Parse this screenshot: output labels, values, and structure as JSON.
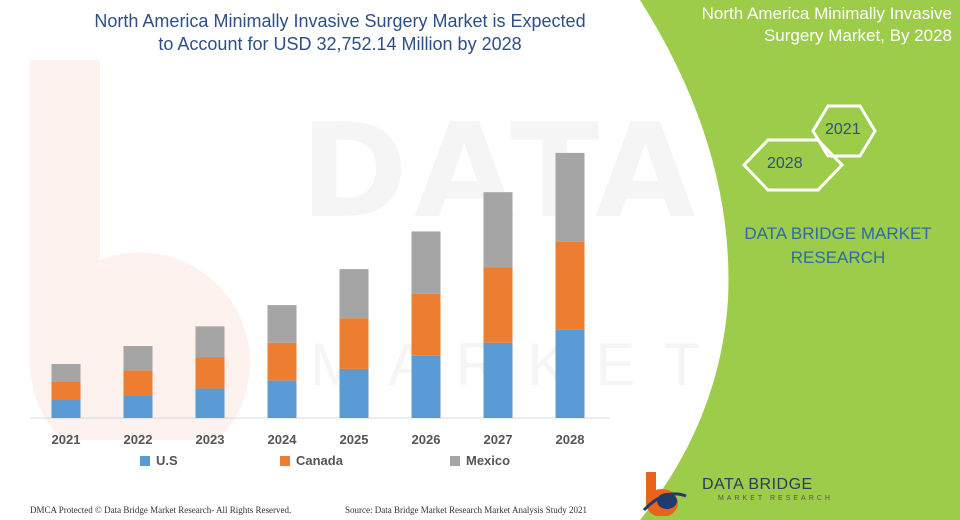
{
  "title": {
    "line1": "North America Minimally Invasive Surgery Market is Expected",
    "line2": "to Account for USD 32,752.14 Million by 2028"
  },
  "panel": {
    "title_line1": "North America Minimally Invasive",
    "title_line2": "Surgery Market, By 2028",
    "hex_large": "2028",
    "hex_small": "2021",
    "brand_line1": "DATA BRIDGE MARKET",
    "brand_line2": "RESEARCH",
    "logo_name": "DATA BRIDGE",
    "logo_sub": "MARKET RESEARCH",
    "bg_color": "#9ccc4a"
  },
  "watermark": {
    "main": "DATA BRIDGE",
    "sub": "MARKET RESEARCH"
  },
  "footer": {
    "left": "DMCA Protected © Data Bridge Market Research- All Rights Reserved.",
    "right": "Source: Data Bridge Market Research Market Analysis Study 2021"
  },
  "chart_data": {
    "type": "bar",
    "stacked": true,
    "categories": [
      "2021",
      "2022",
      "2023",
      "2024",
      "2025",
      "2026",
      "2027",
      "2028"
    ],
    "series": [
      {
        "name": "U.S",
        "color": "#5b9bd5",
        "values": [
          11,
          14,
          18,
          23,
          30,
          38,
          46,
          54
        ]
      },
      {
        "name": "Canada",
        "color": "#ed7d31",
        "values": [
          11,
          15,
          19,
          23,
          31,
          38,
          46,
          54
        ]
      },
      {
        "name": "Mexico",
        "color": "#a5a5a5",
        "values": [
          11,
          15,
          19,
          23,
          30,
          38,
          46,
          54
        ]
      }
    ],
    "ylim": [
      0,
      165
    ],
    "grid": false,
    "legend": "bottom"
  }
}
